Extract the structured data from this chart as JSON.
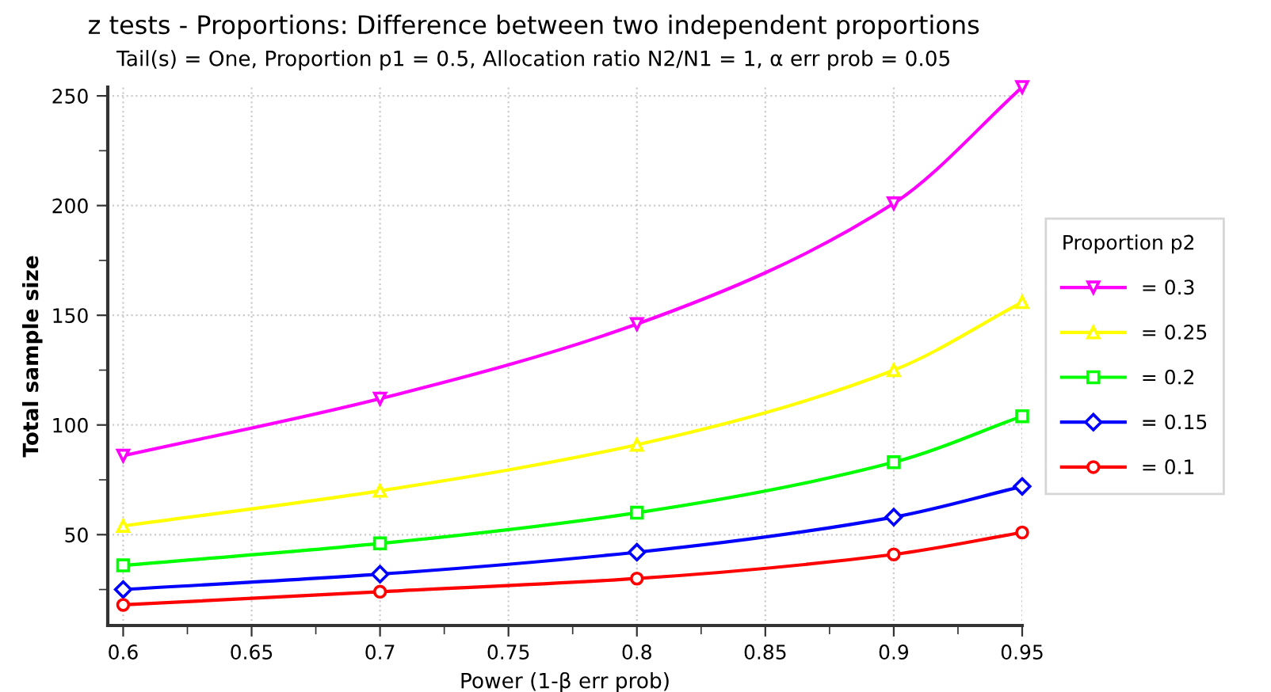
{
  "chart_data": {
    "type": "line",
    "title": "z tests - Proportions: Difference between two independent proportions",
    "subtitle": "Tail(s) = One, Proportion p1 = 0.5, Allocation ratio N2/N1 = 1, α err prob = 0.05",
    "xlabel": "Power (1-β err prob)",
    "ylabel": "Total sample size",
    "legend_title": "Proportion p2",
    "x": [
      0.6,
      0.7,
      0.8,
      0.9,
      0.95
    ],
    "series": [
      {
        "name": "= 0.3",
        "color": "#ff00ff",
        "marker": "triangle",
        "values": [
          86,
          112,
          146,
          201,
          254
        ]
      },
      {
        "name": "= 0.25",
        "color": "#ffff00",
        "marker": "triangle_up",
        "values": [
          54,
          70,
          91,
          125,
          156
        ]
      },
      {
        "name": "= 0.2",
        "color": "#00ff00",
        "marker": "square",
        "values": [
          36,
          46,
          60,
          83,
          104
        ]
      },
      {
        "name": "= 0.15",
        "color": "#0000ff",
        "marker": "diamond",
        "values": [
          25,
          32,
          42,
          58,
          72
        ]
      },
      {
        "name": "= 0.1",
        "color": "#ff0000",
        "marker": "circle",
        "values": [
          18,
          24,
          30,
          41,
          51
        ]
      }
    ],
    "xlim": [
      0.594,
      0.95
    ],
    "ylim": [
      8.6,
      254
    ],
    "xticks": [
      0.6,
      {
        "value": 0.625,
        "label": null
      },
      0.65,
      {
        "value": 0.675,
        "label": null
      },
      0.7,
      {
        "value": 0.725,
        "label": null
      },
      0.75,
      {
        "value": 0.775,
        "label": null
      },
      0.8,
      {
        "value": 0.825,
        "label": null
      },
      0.85,
      {
        "value": 0.875,
        "label": null
      },
      0.9,
      {
        "value": 0.925,
        "label": null
      },
      0.95
    ],
    "yticks": [
      {
        "value": 25,
        "label": null
      },
      50,
      {
        "value": 75,
        "label": null
      },
      100,
      {
        "value": 125,
        "label": null
      },
      150,
      {
        "value": 175,
        "label": null
      },
      200,
      {
        "value": 225,
        "label": null
      },
      250
    ],
    "grid": true,
    "legend": "right",
    "line_style": "solid"
  }
}
